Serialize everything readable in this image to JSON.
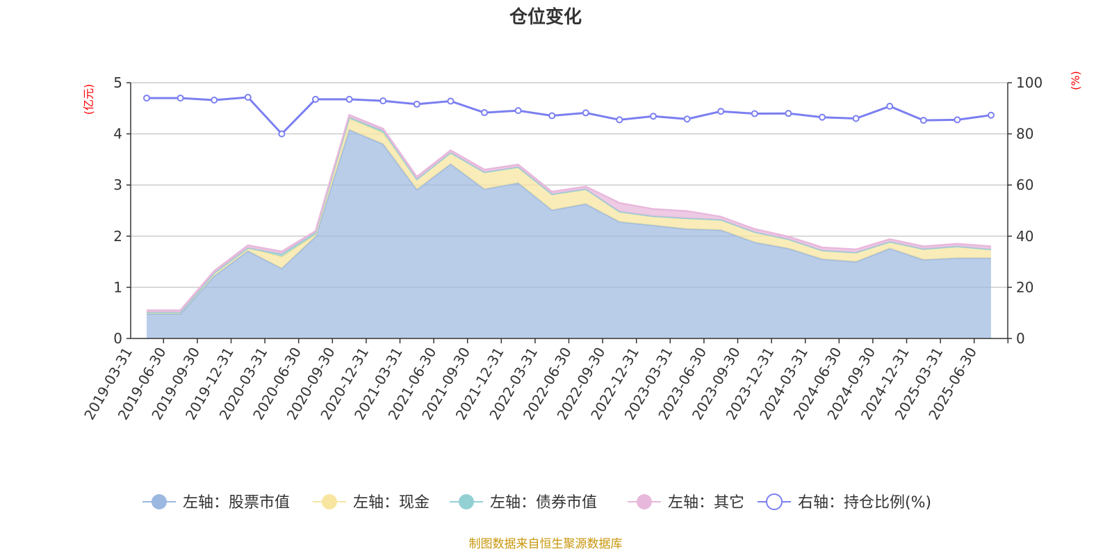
{
  "chart_data": {
    "type": "area",
    "title": "仓位变化",
    "left_axis": {
      "unit": "(亿元)",
      "ticks": [
        "0",
        "1",
        "2",
        "3",
        "4",
        "5"
      ],
      "range": [
        0,
        5
      ]
    },
    "right_axis": {
      "unit": "(%)",
      "ticks": [
        "0",
        "20",
        "40",
        "60",
        "80",
        "100"
      ],
      "range": [
        0,
        100
      ]
    },
    "categories": [
      "2019-03-31",
      "2019-06-30",
      "2019-09-30",
      "2019-12-31",
      "2020-03-31",
      "2020-06-30",
      "2020-09-30",
      "2020-12-31",
      "2021-03-31",
      "2021-06-30",
      "2021-09-30",
      "2021-12-31",
      "2022-03-31",
      "2022-06-30",
      "2022-09-30",
      "2022-12-31",
      "2023-03-31",
      "2023-06-30",
      "2023-09-30",
      "2023-12-31",
      "2024-03-31",
      "2024-06-30",
      "2024-09-30",
      "2024-12-31",
      "2025-03-31",
      "2025-06-30"
    ],
    "series": [
      {
        "name": "左轴：股票市值",
        "axis": "left",
        "color": "#9bb8e0",
        "values": [
          0.48,
          0.48,
          1.22,
          1.71,
          1.37,
          1.99,
          4.08,
          3.8,
          2.91,
          3.41,
          2.92,
          3.04,
          2.51,
          2.63,
          2.28,
          2.21,
          2.14,
          2.12,
          1.88,
          1.76,
          1.55,
          1.5,
          1.76,
          1.54,
          1.57,
          1.57
        ]
      },
      {
        "name": "左轴：现金",
        "axis": "left",
        "color": "#f8e6a0",
        "values": [
          0.03,
          0.03,
          0.06,
          0.06,
          0.23,
          0.04,
          0.22,
          0.22,
          0.2,
          0.22,
          0.33,
          0.31,
          0.31,
          0.29,
          0.2,
          0.18,
          0.21,
          0.2,
          0.2,
          0.18,
          0.17,
          0.18,
          0.13,
          0.21,
          0.23,
          0.17
        ]
      },
      {
        "name": "左轴：债券市值",
        "axis": "left",
        "color": "#93d0d4",
        "values": [
          0,
          0,
          0,
          0,
          0.05,
          0.04,
          0.02,
          0.04,
          0,
          0,
          0,
          0,
          0,
          0,
          0,
          0,
          0,
          0,
          0,
          0,
          0,
          0,
          0,
          0,
          0,
          0
        ]
      },
      {
        "name": "左轴：其它",
        "axis": "left",
        "color": "#e8b8dc",
        "values": [
          0.04,
          0.04,
          0.04,
          0.05,
          0.05,
          0.03,
          0.05,
          0.04,
          0.05,
          0.05,
          0.05,
          0.05,
          0.05,
          0.05,
          0.17,
          0.14,
          0.14,
          0.06,
          0.06,
          0.05,
          0.06,
          0.06,
          0.05,
          0.05,
          0.05,
          0.06
        ]
      },
      {
        "name": "右轴：持仓比例(%)",
        "axis": "right",
        "color": "#7b7ff0",
        "values": [
          94.0,
          94.0,
          93.2,
          94.3,
          80.0,
          93.5,
          93.5,
          92.9,
          91.6,
          92.8,
          88.3,
          89.1,
          87.1,
          88.2,
          85.5,
          86.9,
          85.8,
          88.8,
          87.9,
          88.0,
          86.5,
          86.0,
          90.8,
          85.3,
          85.5,
          87.3
        ]
      }
    ],
    "legend_position": "bottom",
    "grid": true,
    "source": "制图数据来自恒生聚源数据库"
  }
}
